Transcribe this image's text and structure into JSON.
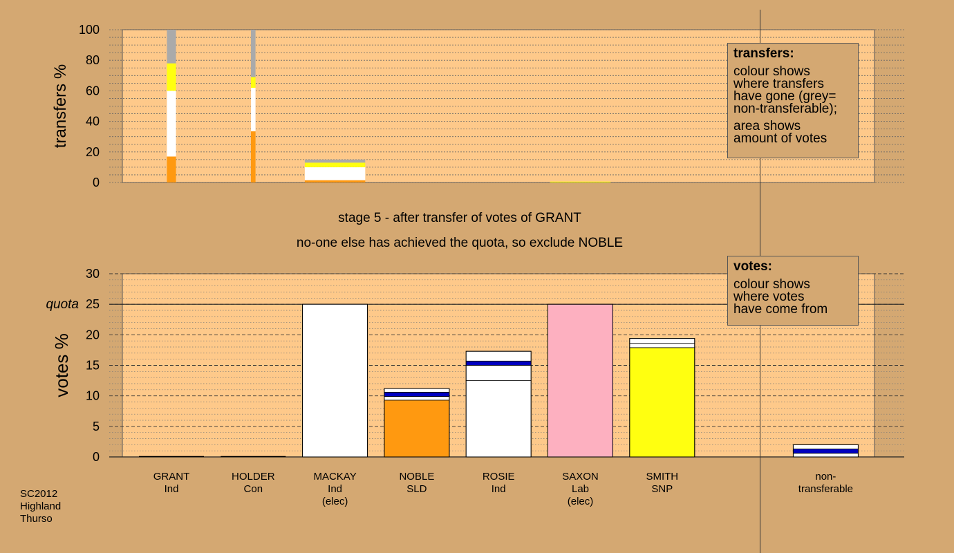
{
  "stage_title": "stage 5 - after transfer of votes of GRANT",
  "stage_note": "no-one else has achieved the quota, so exclude NOBLE",
  "transfers_legend": {
    "title": "transfers:",
    "lines_a": [
      "colour shows",
      "where transfers",
      "have gone (grey=",
      "non-transferable);"
    ],
    "lines_b": [
      "area shows",
      "amount of votes"
    ]
  },
  "votes_legend": {
    "title": "votes:",
    "lines": [
      "colour shows",
      "where votes",
      "have come from"
    ]
  },
  "footer": [
    "SC2012",
    "Highland",
    "Thurso"
  ],
  "colors": {
    "background": "#d4a872",
    "plot_background": "#fec98a",
    "Ind": "#ffffff",
    "SLD": "#ff9910",
    "Lab": "#fdb0c0",
    "SNP": "#ffff10",
    "Con": "#0000c0",
    "non_transferable": "#aaaaaa"
  },
  "chart_data": [
    {
      "type": "bar",
      "ylabel": "transfers %",
      "ylim": [
        0,
        100
      ],
      "yticks": [
        0,
        20,
        40,
        60,
        80,
        100
      ],
      "grid": true,
      "note": "stacked bars showing where transferred votes went; bar width proportional to amount of votes",
      "bars": [
        {
          "slot": 0,
          "width_fraction": 0.14,
          "segments": [
            {
              "color": "SLD",
              "from": 0,
              "to": 17
            },
            {
              "color": "Ind",
              "from": 17,
              "to": 60
            },
            {
              "color": "SNP",
              "from": 60,
              "to": 78
            },
            {
              "color": "non_transferable",
              "from": 78,
              "to": 100
            }
          ]
        },
        {
          "slot": 1,
          "width_fraction": 0.07,
          "segments": [
            {
              "color": "SLD",
              "from": 0,
              "to": 33.5
            },
            {
              "color": "Ind",
              "from": 33.5,
              "to": 62
            },
            {
              "color": "SNP",
              "from": 62,
              "to": 69
            },
            {
              "color": "non_transferable",
              "from": 69,
              "to": 100
            }
          ]
        },
        {
          "slot": 2,
          "width_fraction": 0.93,
          "segments": [
            {
              "color": "SLD",
              "from": 0,
              "to": 1.5
            },
            {
              "color": "Ind",
              "from": 1.5,
              "to": 10
            },
            {
              "color": "SNP",
              "from": 10,
              "to": 13
            },
            {
              "color": "non_transferable",
              "from": 13,
              "to": 15
            }
          ]
        },
        {
          "slot": 5,
          "width_fraction": 0.93,
          "segments": [
            {
              "color": "SNP",
              "from": 0,
              "to": 0.6
            }
          ]
        }
      ]
    },
    {
      "type": "bar",
      "ylabel": "votes %",
      "ylim": [
        0,
        30
      ],
      "yticks": [
        0,
        5,
        10,
        15,
        20,
        25,
        30
      ],
      "quota": 25,
      "quota_label": "quota",
      "grid": true,
      "categories": [
        {
          "name": "GRANT",
          "party": "Ind",
          "note": ""
        },
        {
          "name": "HOLDER",
          "party": "Con",
          "note": ""
        },
        {
          "name": "MACKAY",
          "party": "Ind",
          "note": "(elec)"
        },
        {
          "name": "NOBLE",
          "party": "SLD",
          "note": ""
        },
        {
          "name": "ROSIE",
          "party": "Ind",
          "note": ""
        },
        {
          "name": "SAXON",
          "party": "Lab",
          "note": "(elec)"
        },
        {
          "name": "SMITH",
          "party": "SNP",
          "note": ""
        },
        {
          "name": "",
          "party": "",
          "note": ""
        },
        {
          "name": "non-",
          "party": "transferable",
          "note": ""
        }
      ],
      "bars": [
        {
          "slot": 0,
          "segments": [
            {
              "color": "Ind",
              "from": 0,
              "to": 0
            }
          ]
        },
        {
          "slot": 1,
          "segments": [
            {
              "color": "Con",
              "from": 0,
              "to": 0
            }
          ]
        },
        {
          "slot": 2,
          "segments": [
            {
              "color": "Ind",
              "from": 0,
              "to": 25
            }
          ]
        },
        {
          "slot": 3,
          "segments": [
            {
              "color": "SLD",
              "from": 0,
              "to": 9.3
            },
            {
              "color": "Ind",
              "from": 9.3,
              "to": 9.9
            },
            {
              "color": "Con",
              "from": 9.9,
              "to": 10.6
            },
            {
              "color": "Ind",
              "from": 10.6,
              "to": 11.2
            }
          ]
        },
        {
          "slot": 4,
          "segments": [
            {
              "color": "Ind",
              "from": 0,
              "to": 12.5
            },
            {
              "color": "Ind",
              "from": 12.5,
              "to": 15.0
            },
            {
              "color": "Con",
              "from": 15.0,
              "to": 15.7
            },
            {
              "color": "Ind",
              "from": 15.7,
              "to": 17.3
            }
          ]
        },
        {
          "slot": 5,
          "segments": [
            {
              "color": "Lab",
              "from": 0,
              "to": 25
            }
          ]
        },
        {
          "slot": 6,
          "segments": [
            {
              "color": "SNP",
              "from": 0,
              "to": 17.9
            },
            {
              "color": "Ind",
              "from": 17.9,
              "to": 18.6
            },
            {
              "color": "Ind",
              "from": 18.6,
              "to": 19.4
            }
          ]
        },
        {
          "slot": 8,
          "segments": [
            {
              "color": "Ind",
              "from": 0,
              "to": 0.6
            },
            {
              "color": "Con",
              "from": 0.6,
              "to": 1.3
            },
            {
              "color": "Ind",
              "from": 1.3,
              "to": 2.0
            }
          ]
        }
      ]
    }
  ]
}
